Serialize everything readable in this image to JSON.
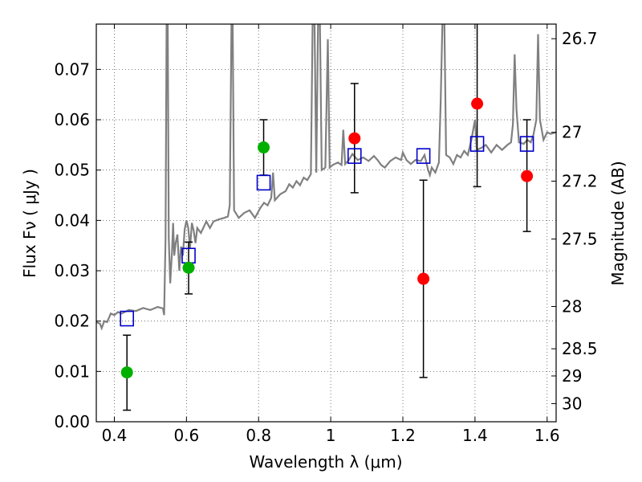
{
  "chart_data": {
    "type": "scatter",
    "xlabel": "Wavelength  λ (μm)",
    "ylabel": "Flux  Fν  ( μJy )",
    "ylabel_right": "Magnitude (AB)",
    "xlim": [
      0.35,
      1.625
    ],
    "ylim": [
      0.0,
      0.079
    ],
    "grid": true,
    "x_ticks": [
      0.4,
      0.6,
      0.8,
      1.0,
      1.2,
      1.4,
      1.6
    ],
    "x_tick_labels": [
      "0.4",
      "0.6",
      "0.8",
      "1",
      "1.2",
      "1.4",
      "1.6"
    ],
    "y_ticks": [
      0.0,
      0.01,
      0.02,
      0.03,
      0.04,
      0.05,
      0.06,
      0.07
    ],
    "y_tick_labels": [
      "0.00",
      "0.01",
      "0.02",
      "0.03",
      "0.04",
      "0.05",
      "0.06",
      "0.07"
    ],
    "right_ticks": [
      {
        "flux": 0.0761,
        "label": "26.7"
      },
      {
        "flux": 0.0575,
        "label": "27"
      },
      {
        "flux": 0.0478,
        "label": "27.2"
      },
      {
        "flux": 0.0363,
        "label": "27.5"
      },
      {
        "flux": 0.0229,
        "label": "28"
      },
      {
        "flux": 0.0145,
        "label": "28.5"
      },
      {
        "flux": 0.0091,
        "label": "29"
      },
      {
        "flux": 0.0036,
        "label": "30"
      }
    ],
    "colors": {
      "template": "#808080",
      "model_box": "#0000cc",
      "hst_point": "#00b000",
      "ir_point": "#ff0000",
      "errorbar": "#000000",
      "grid": "#555555"
    },
    "series": [
      {
        "marker": "open-square",
        "color": "#0000cc",
        "points": [
          {
            "x": 0.435,
            "y": 0.0205
          },
          {
            "x": 0.606,
            "y": 0.033
          },
          {
            "x": 0.814,
            "y": 0.0475
          },
          {
            "x": 1.066,
            "y": 0.0528
          },
          {
            "x": 1.257,
            "y": 0.0528
          },
          {
            "x": 1.406,
            "y": 0.0552
          },
          {
            "x": 1.544,
            "y": 0.0552
          }
        ]
      },
      {
        "marker": "filled-circle",
        "color": "#00b000",
        "points": [
          {
            "x": 0.435,
            "y": 0.0098,
            "err_low": 0.0023,
            "err_high": 0.0172
          },
          {
            "x": 0.606,
            "y": 0.0306,
            "err_low": 0.0254,
            "err_high": 0.0357
          },
          {
            "x": 0.814,
            "y": 0.0545,
            "err_low": 0.049,
            "err_high": 0.06
          }
        ]
      },
      {
        "marker": "filled-circle",
        "color": "#ff0000",
        "points": [
          {
            "x": 1.066,
            "y": 0.0563,
            "err_low": 0.0455,
            "err_high": 0.0672
          },
          {
            "x": 1.257,
            "y": 0.0284,
            "err_low": 0.0088,
            "err_high": 0.048
          },
          {
            "x": 1.406,
            "y": 0.0632,
            "err_low": 0.0467,
            "err_high": 0.08
          },
          {
            "x": 1.544,
            "y": 0.0488,
            "err_low": 0.0378,
            "err_high": 0.06
          }
        ]
      },
      {
        "marker": "line",
        "color": "#808080",
        "points": [
          {
            "x": 0.35,
            "y": 0.0198
          },
          {
            "x": 0.36,
            "y": 0.0195
          },
          {
            "x": 0.365,
            "y": 0.0186
          },
          {
            "x": 0.372,
            "y": 0.02
          },
          {
            "x": 0.38,
            "y": 0.0198
          },
          {
            "x": 0.39,
            "y": 0.0215
          },
          {
            "x": 0.4,
            "y": 0.0212
          },
          {
            "x": 0.41,
            "y": 0.0218
          },
          {
            "x": 0.42,
            "y": 0.0215
          },
          {
            "x": 0.44,
            "y": 0.0222
          },
          {
            "x": 0.46,
            "y": 0.022
          },
          {
            "x": 0.48,
            "y": 0.0226
          },
          {
            "x": 0.5,
            "y": 0.0222
          },
          {
            "x": 0.52,
            "y": 0.0228
          },
          {
            "x": 0.535,
            "y": 0.0225
          },
          {
            "x": 0.538,
            "y": 0.0212
          },
          {
            "x": 0.542,
            "y": 0.0365
          },
          {
            "x": 0.545,
            "y": 0.08
          },
          {
            "x": 0.548,
            "y": 0.08
          },
          {
            "x": 0.551,
            "y": 0.0365
          },
          {
            "x": 0.555,
            "y": 0.0275
          },
          {
            "x": 0.56,
            "y": 0.034
          },
          {
            "x": 0.563,
            "y": 0.0395
          },
          {
            "x": 0.566,
            "y": 0.033
          },
          {
            "x": 0.57,
            "y": 0.0355
          },
          {
            "x": 0.575,
            "y": 0.0372
          },
          {
            "x": 0.58,
            "y": 0.03
          },
          {
            "x": 0.585,
            "y": 0.0348
          },
          {
            "x": 0.59,
            "y": 0.033
          },
          {
            "x": 0.595,
            "y": 0.0382
          },
          {
            "x": 0.6,
            "y": 0.04
          },
          {
            "x": 0.605,
            "y": 0.0385
          },
          {
            "x": 0.61,
            "y": 0.0345
          },
          {
            "x": 0.615,
            "y": 0.0395
          },
          {
            "x": 0.62,
            "y": 0.038
          },
          {
            "x": 0.625,
            "y": 0.0355
          },
          {
            "x": 0.63,
            "y": 0.0385
          },
          {
            "x": 0.64,
            "y": 0.0375
          },
          {
            "x": 0.65,
            "y": 0.039
          },
          {
            "x": 0.655,
            "y": 0.0398
          },
          {
            "x": 0.665,
            "y": 0.0385
          },
          {
            "x": 0.675,
            "y": 0.0398
          },
          {
            "x": 0.69,
            "y": 0.0402
          },
          {
            "x": 0.705,
            "y": 0.0405
          },
          {
            "x": 0.715,
            "y": 0.0408
          },
          {
            "x": 0.72,
            "y": 0.043
          },
          {
            "x": 0.725,
            "y": 0.08
          },
          {
            "x": 0.728,
            "y": 0.08
          },
          {
            "x": 0.732,
            "y": 0.042
          },
          {
            "x": 0.745,
            "y": 0.0405
          },
          {
            "x": 0.76,
            "y": 0.0415
          },
          {
            "x": 0.775,
            "y": 0.042
          },
          {
            "x": 0.79,
            "y": 0.0405
          },
          {
            "x": 0.805,
            "y": 0.0425
          },
          {
            "x": 0.815,
            "y": 0.0435
          },
          {
            "x": 0.825,
            "y": 0.043
          },
          {
            "x": 0.835,
            "y": 0.0445
          },
          {
            "x": 0.84,
            "y": 0.0495
          },
          {
            "x": 0.845,
            "y": 0.044
          },
          {
            "x": 0.86,
            "y": 0.0452
          },
          {
            "x": 0.875,
            "y": 0.0458
          },
          {
            "x": 0.885,
            "y": 0.0472
          },
          {
            "x": 0.895,
            "y": 0.0465
          },
          {
            "x": 0.905,
            "y": 0.0478
          },
          {
            "x": 0.915,
            "y": 0.047
          },
          {
            "x": 0.925,
            "y": 0.0485
          },
          {
            "x": 0.935,
            "y": 0.048
          },
          {
            "x": 0.945,
            "y": 0.0492
          },
          {
            "x": 0.95,
            "y": 0.08
          },
          {
            "x": 0.955,
            "y": 0.08
          },
          {
            "x": 0.96,
            "y": 0.0495
          },
          {
            "x": 0.965,
            "y": 0.08
          },
          {
            "x": 0.97,
            "y": 0.08
          },
          {
            "x": 0.975,
            "y": 0.05
          },
          {
            "x": 0.985,
            "y": 0.0505
          },
          {
            "x": 0.992,
            "y": 0.076
          },
          {
            "x": 0.997,
            "y": 0.0505
          },
          {
            "x": 1.005,
            "y": 0.051
          },
          {
            "x": 1.02,
            "y": 0.0515
          },
          {
            "x": 1.03,
            "y": 0.051
          },
          {
            "x": 1.035,
            "y": 0.058
          },
          {
            "x": 1.04,
            "y": 0.0512
          },
          {
            "x": 1.05,
            "y": 0.052
          },
          {
            "x": 1.06,
            "y": 0.0532
          },
          {
            "x": 1.075,
            "y": 0.052
          },
          {
            "x": 1.09,
            "y": 0.0525
          },
          {
            "x": 1.105,
            "y": 0.0518
          },
          {
            "x": 1.12,
            "y": 0.0528
          },
          {
            "x": 1.13,
            "y": 0.052
          },
          {
            "x": 1.14,
            "y": 0.051
          },
          {
            "x": 1.15,
            "y": 0.0505
          },
          {
            "x": 1.165,
            "y": 0.0518
          },
          {
            "x": 1.18,
            "y": 0.0525
          },
          {
            "x": 1.195,
            "y": 0.052
          },
          {
            "x": 1.2,
            "y": 0.0535
          },
          {
            "x": 1.21,
            "y": 0.052
          },
          {
            "x": 1.222,
            "y": 0.0512
          },
          {
            "x": 1.235,
            "y": 0.052
          },
          {
            "x": 1.25,
            "y": 0.0518
          },
          {
            "x": 1.26,
            "y": 0.053
          },
          {
            "x": 1.27,
            "y": 0.05
          },
          {
            "x": 1.275,
            "y": 0.049
          },
          {
            "x": 1.28,
            "y": 0.0505
          },
          {
            "x": 1.29,
            "y": 0.0495
          },
          {
            "x": 1.3,
            "y": 0.0515
          },
          {
            "x": 1.305,
            "y": 0.064
          },
          {
            "x": 1.31,
            "y": 0.08
          },
          {
            "x": 1.315,
            "y": 0.08
          },
          {
            "x": 1.32,
            "y": 0.053
          },
          {
            "x": 1.33,
            "y": 0.0525
          },
          {
            "x": 1.34,
            "y": 0.0512
          },
          {
            "x": 1.35,
            "y": 0.053
          },
          {
            "x": 1.36,
            "y": 0.0525
          },
          {
            "x": 1.37,
            "y": 0.0538
          },
          {
            "x": 1.38,
            "y": 0.053
          },
          {
            "x": 1.39,
            "y": 0.056
          },
          {
            "x": 1.4,
            "y": 0.06
          },
          {
            "x": 1.405,
            "y": 0.054
          },
          {
            "x": 1.42,
            "y": 0.0545
          },
          {
            "x": 1.43,
            "y": 0.055
          },
          {
            "x": 1.445,
            "y": 0.0535
          },
          {
            "x": 1.46,
            "y": 0.055
          },
          {
            "x": 1.475,
            "y": 0.054
          },
          {
            "x": 1.49,
            "y": 0.055
          },
          {
            "x": 1.5,
            "y": 0.0555
          },
          {
            "x": 1.505,
            "y": 0.059
          },
          {
            "x": 1.51,
            "y": 0.073
          },
          {
            "x": 1.515,
            "y": 0.062
          },
          {
            "x": 1.522,
            "y": 0.0555
          },
          {
            "x": 1.535,
            "y": 0.0552
          },
          {
            "x": 1.545,
            "y": 0.056
          },
          {
            "x": 1.555,
            "y": 0.0555
          },
          {
            "x": 1.562,
            "y": 0.057
          },
          {
            "x": 1.57,
            "y": 0.06
          },
          {
            "x": 1.575,
            "y": 0.077
          },
          {
            "x": 1.58,
            "y": 0.06
          },
          {
            "x": 1.59,
            "y": 0.056
          },
          {
            "x": 1.6,
            "y": 0.0575
          },
          {
            "x": 1.61,
            "y": 0.0572
          },
          {
            "x": 1.625,
            "y": 0.0575
          }
        ]
      }
    ]
  }
}
